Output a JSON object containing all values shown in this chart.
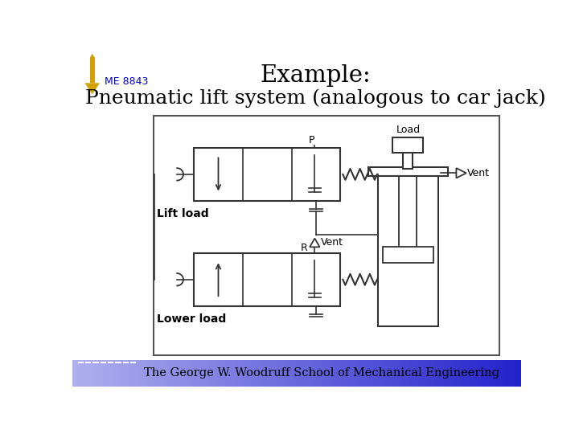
{
  "title_example": "Example:",
  "title_main": "Pneumatic lift system (analogous to car jack)",
  "label_me": "ME 8843",
  "label_lift": "Lift load",
  "label_lower": "Lower load",
  "label_p": "P",
  "label_r": "R",
  "label_vent1": "Vent",
  "label_vent2": "Vent",
  "label_load": "Load",
  "footer": "The George W. Woodruff School of Mechanical Engineering",
  "bg_color": "#ffffff",
  "diagram_border_color": "#444444",
  "line_color": "#333333",
  "arrow_color": "#d4a000",
  "me_color": "#0000cc",
  "footer_color1": "#c8c8ff",
  "footer_color2": "#4444dd"
}
